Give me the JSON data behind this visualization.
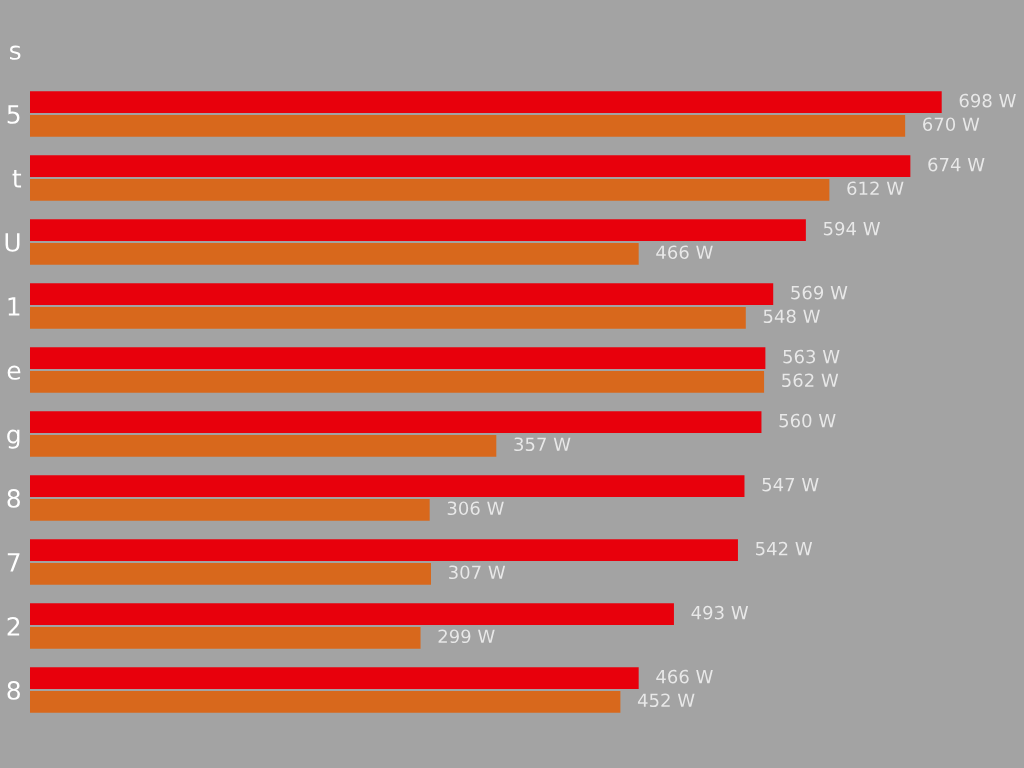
{
  "chart_data": {
    "type": "bar",
    "orientation": "horizontal",
    "categories": [
      "s",
      "5",
      "t",
      "U",
      "1",
      "e",
      "g",
      "8",
      "7",
      "2",
      "8"
    ],
    "series": [
      {
        "color": "#e8000c",
        "values": [
          null,
          698,
          674,
          594,
          569,
          563,
          560,
          547,
          542,
          493,
          466
        ],
        "value_labels": [
          null,
          "698 W",
          "674 W",
          "594 W",
          "569 W",
          "563 W",
          "560 W",
          "547 W",
          "542 W",
          "493 W",
          "466 W"
        ]
      },
      {
        "color": "#d8681c",
        "values": [
          null,
          670,
          612,
          466,
          548,
          562,
          357,
          306,
          307,
          299,
          452
        ],
        "value_labels": [
          null,
          "670 W",
          "612 W",
          "466 W",
          "548 W",
          "562 W",
          "357 W",
          "306 W",
          "307 W",
          "299 W",
          "452 W"
        ]
      }
    ],
    "xlim": [
      0,
      761
    ],
    "tick_labels": "y",
    "grid": false,
    "legend": false
  }
}
